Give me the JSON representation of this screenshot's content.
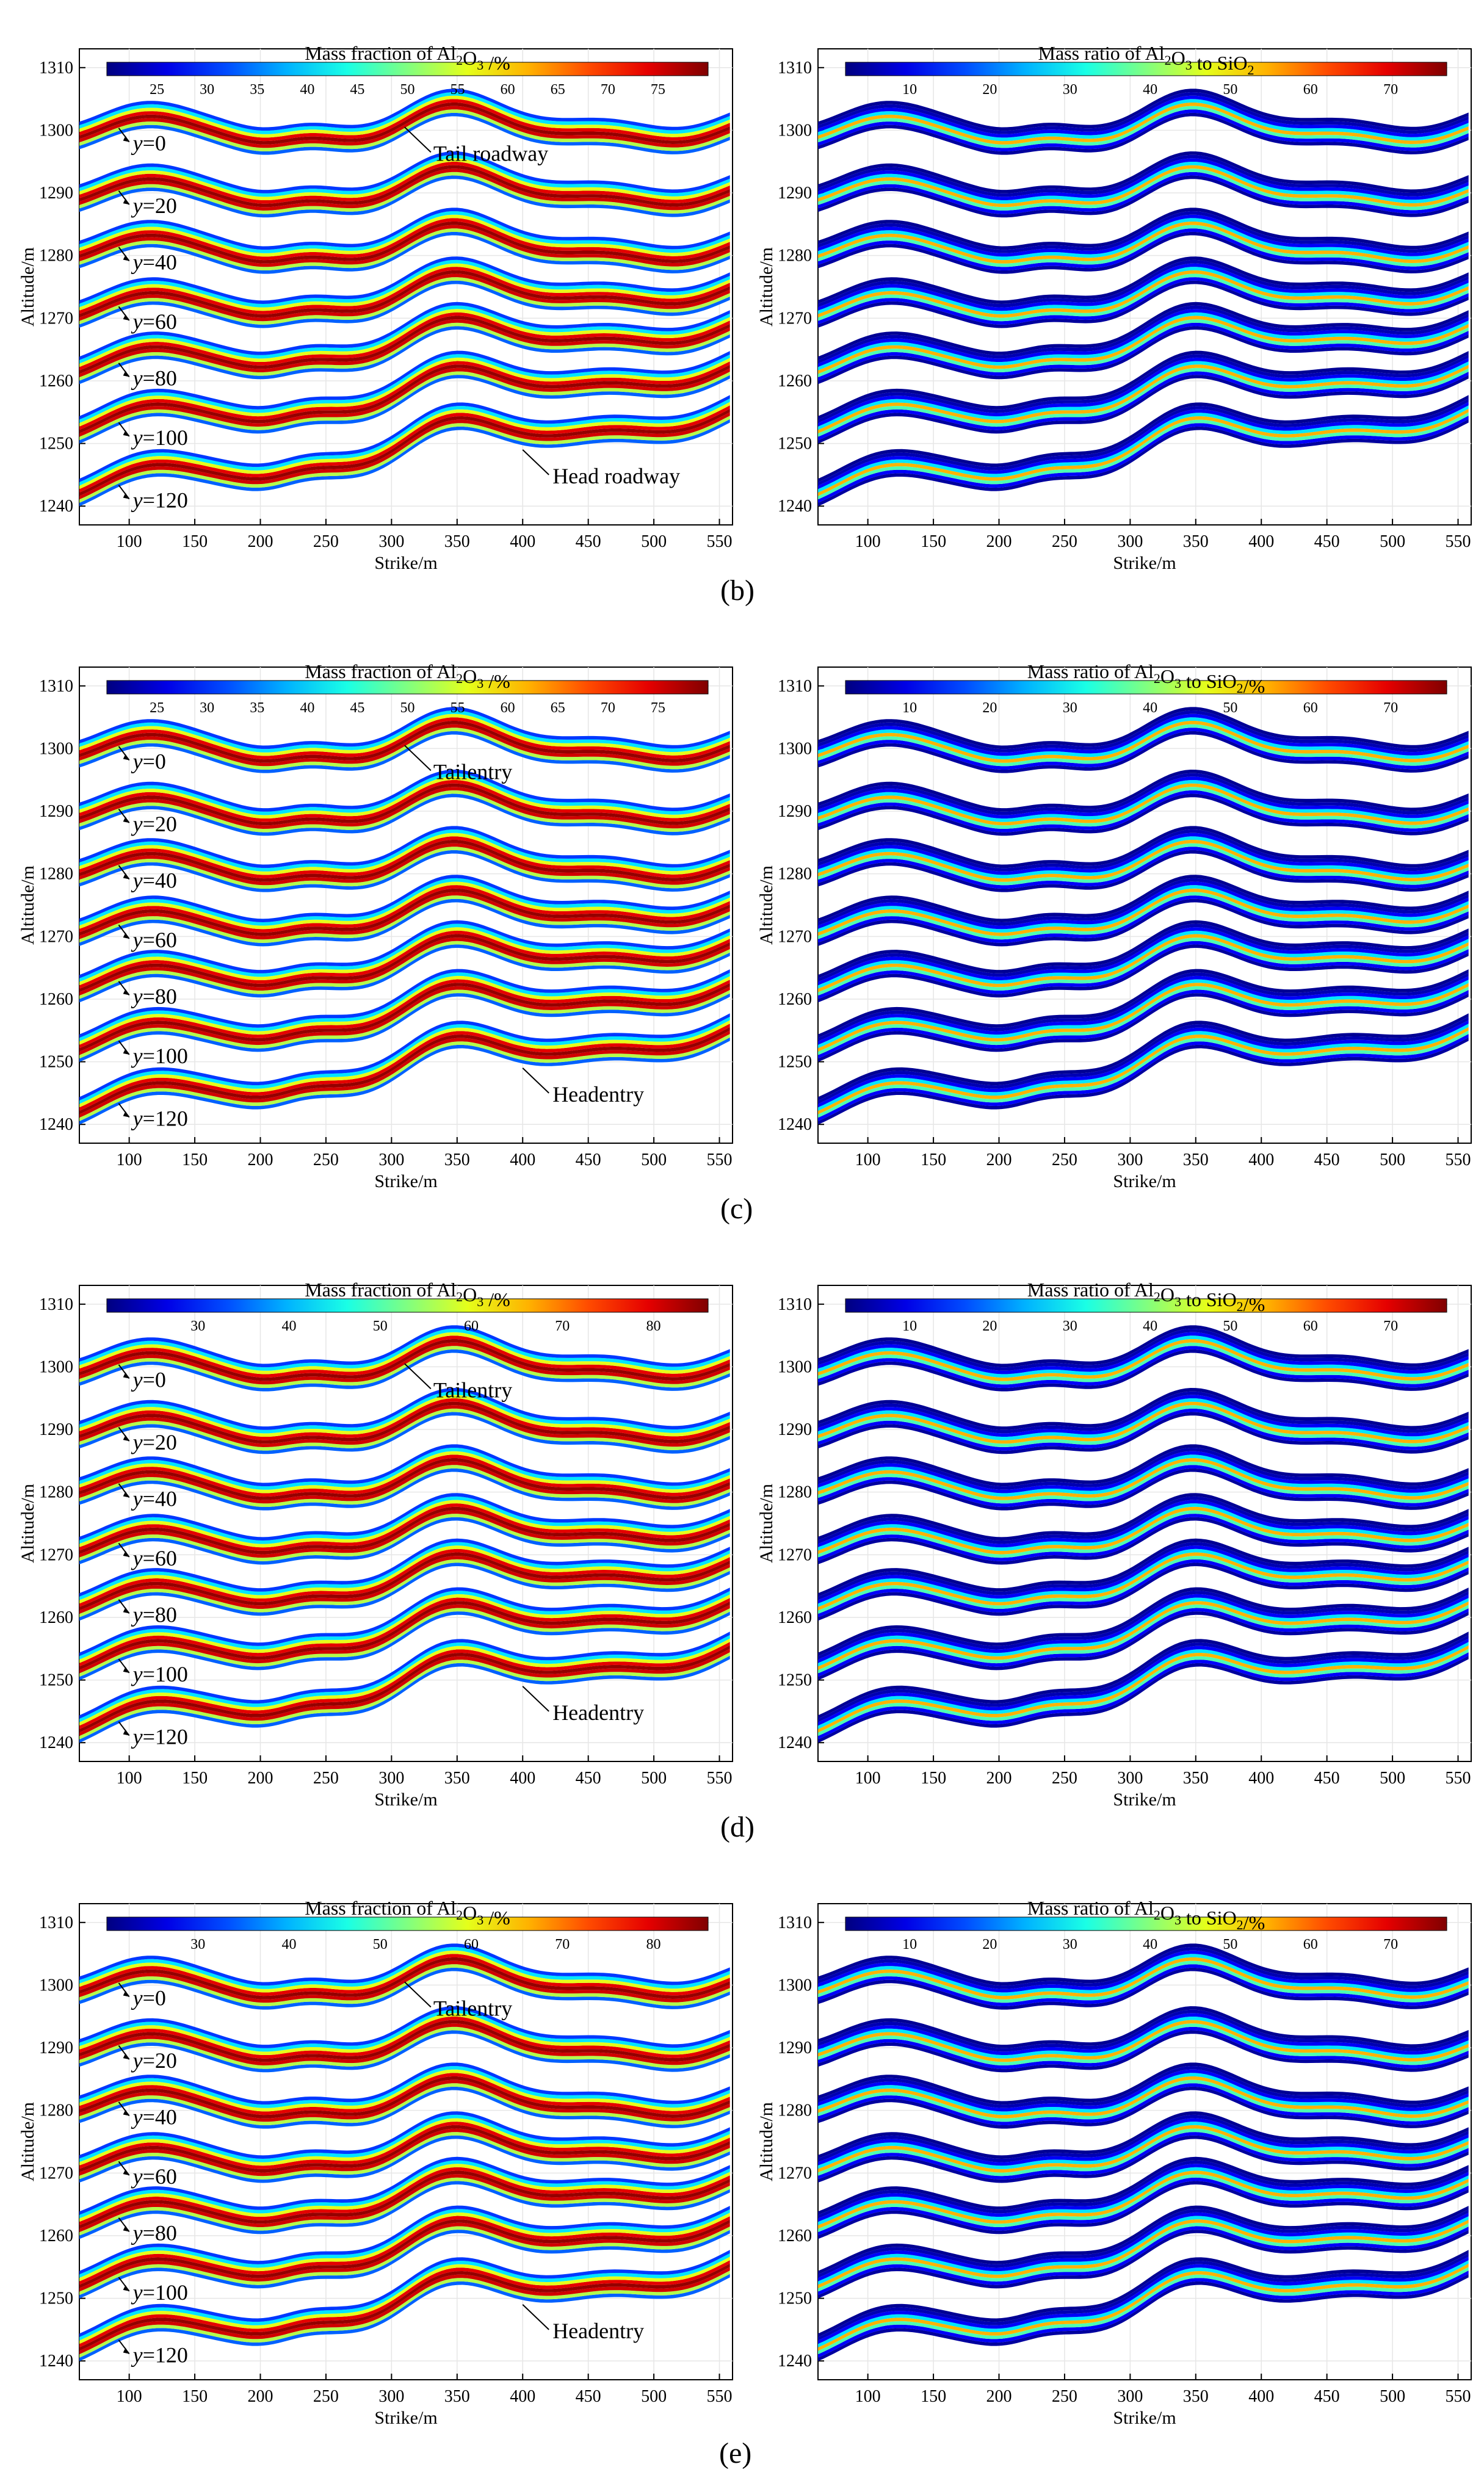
{
  "chart_data": [
    {
      "panel": "b",
      "charts": [
        {
          "type": "contour",
          "side": "left",
          "colorbar_title_main": "Mass fraction of Al",
          "colorbar_title_tail": "O",
          "colorbar_title_end": " /%",
          "colorbar_ticks": [
            25,
            30,
            35,
            40,
            45,
            50,
            55,
            60,
            65,
            70,
            75
          ],
          "colorbar_range": [
            20,
            80
          ],
          "ylabel": "Altitude/m",
          "xlabel": "Strike/m",
          "xticks": [
            100,
            150,
            200,
            250,
            300,
            350,
            400,
            450,
            500,
            550
          ],
          "yticks": [
            1240,
            1250,
            1260,
            1270,
            1280,
            1290,
            1300,
            1310
          ],
          "xlim": [
            62,
            560
          ],
          "ylim": [
            1237,
            1313
          ],
          "y_levels": [
            {
              "label": "y=0",
              "base": 1298
            },
            {
              "label": "y=20",
              "base": 1288
            },
            {
              "label": "y=40",
              "base": 1279
            },
            {
              "label": "y=60",
              "base": 1269.5
            },
            {
              "label": "y=80",
              "base": 1260.5
            },
            {
              "label": "y=100",
              "base": 1251
            },
            {
              "label": "y=120",
              "base": 1241
            }
          ],
          "annotations": [
            "Tail roadway",
            "Head roadway"
          ],
          "mode": "frac"
        },
        {
          "type": "contour",
          "side": "right",
          "colorbar_title_main": "Mass ratio of Al",
          "colorbar_title_tail": "O",
          "colorbar_title_end": " to SiO",
          "colorbar_title_suffix": "",
          "colorbar_ticks": [
            10,
            20,
            30,
            40,
            50,
            60,
            70
          ],
          "colorbar_range": [
            2,
            77
          ],
          "ylabel": "Altitude/m",
          "xlabel": "Strike/m",
          "xticks": [
            100,
            150,
            200,
            250,
            300,
            350,
            400,
            450,
            500,
            550
          ],
          "yticks": [
            1240,
            1250,
            1260,
            1270,
            1280,
            1290,
            1300,
            1310
          ],
          "xlim": [
            62,
            560
          ],
          "ylim": [
            1237,
            1313
          ],
          "mode": "ratio"
        }
      ]
    },
    {
      "panel": "c",
      "charts": [
        {
          "type": "contour",
          "side": "left",
          "colorbar_title_main": "Mass fraction of Al",
          "colorbar_title_tail": "O",
          "colorbar_title_end": " /%",
          "colorbar_ticks": [
            25,
            30,
            35,
            40,
            45,
            50,
            55,
            60,
            65,
            70,
            75
          ],
          "colorbar_range": [
            20,
            80
          ],
          "ylabel": "Altitude/m",
          "xlabel": "Strike/m",
          "xticks": [
            100,
            150,
            200,
            250,
            300,
            350,
            400,
            450,
            500,
            550
          ],
          "yticks": [
            1240,
            1250,
            1260,
            1270,
            1280,
            1290,
            1300,
            1310
          ],
          "xlim": [
            62,
            560
          ],
          "ylim": [
            1237,
            1313
          ],
          "annotations": [
            "Tailentry",
            "Headentry"
          ],
          "mode": "frac"
        },
        {
          "type": "contour",
          "side": "right",
          "colorbar_title_main": "Mass ratio of Al",
          "colorbar_title_tail": "O",
          "colorbar_title_end": " to SiO",
          "colorbar_title_suffix": "/%",
          "colorbar_ticks": [
            10,
            20,
            30,
            40,
            50,
            60,
            70
          ],
          "colorbar_range": [
            2,
            77
          ],
          "ylabel": "Altitude/m",
          "xlabel": "Strike/m",
          "xticks": [
            100,
            150,
            200,
            250,
            300,
            350,
            400,
            450,
            500,
            550
          ],
          "yticks": [
            1240,
            1250,
            1260,
            1270,
            1280,
            1290,
            1300,
            1310
          ],
          "xlim": [
            62,
            560
          ],
          "ylim": [
            1237,
            1313
          ],
          "mode": "ratio"
        }
      ]
    },
    {
      "panel": "d",
      "charts": [
        {
          "type": "contour",
          "side": "left",
          "colorbar_title_main": "Mass fraction of Al",
          "colorbar_title_tail": "O",
          "colorbar_title_end": " /%",
          "colorbar_ticks": [
            30,
            40,
            50,
            60,
            70,
            80
          ],
          "colorbar_range": [
            20,
            86
          ],
          "ylabel": "Altitude/m",
          "xlabel": "Strike/m",
          "xticks": [
            100,
            150,
            200,
            250,
            300,
            350,
            400,
            450,
            500,
            550
          ],
          "yticks": [
            1240,
            1250,
            1260,
            1270,
            1280,
            1290,
            1300,
            1310
          ],
          "xlim": [
            62,
            560
          ],
          "ylim": [
            1237,
            1313
          ],
          "annotations": [
            "Tailentry",
            "Headentry"
          ],
          "mode": "frac"
        },
        {
          "type": "contour",
          "side": "right",
          "colorbar_title_main": "Mass ratio of Al",
          "colorbar_title_tail": "O",
          "colorbar_title_end": " to SiO",
          "colorbar_title_suffix": "/%",
          "colorbar_ticks": [
            10,
            20,
            30,
            40,
            50,
            60,
            70
          ],
          "colorbar_range": [
            2,
            77
          ],
          "ylabel": "Altitude/m",
          "xlabel": "Strike/m",
          "xticks": [
            100,
            150,
            200,
            250,
            300,
            350,
            400,
            450,
            500,
            550
          ],
          "yticks": [
            1240,
            1250,
            1260,
            1270,
            1280,
            1290,
            1300,
            1310
          ],
          "xlim": [
            62,
            560
          ],
          "ylim": [
            1237,
            1313
          ],
          "mode": "ratio"
        }
      ]
    },
    {
      "panel": "e",
      "charts": [
        {
          "type": "contour",
          "side": "left",
          "colorbar_title_main": "Mass fraction of Al",
          "colorbar_title_tail": "O",
          "colorbar_title_end": " /%",
          "colorbar_ticks": [
            30,
            40,
            50,
            60,
            70,
            80
          ],
          "colorbar_range": [
            20,
            86
          ],
          "ylabel": "Altitude/m",
          "xlabel": "Strike/m",
          "xticks": [
            100,
            150,
            200,
            250,
            300,
            350,
            400,
            450,
            500,
            550
          ],
          "yticks": [
            1240,
            1250,
            1260,
            1270,
            1280,
            1290,
            1300,
            1310
          ],
          "xlim": [
            62,
            560
          ],
          "ylim": [
            1237,
            1313
          ],
          "annotations": [
            "Tailentry",
            "Headentry"
          ],
          "mode": "frac"
        },
        {
          "type": "contour",
          "side": "right",
          "colorbar_title_main": "Mass ratio of Al",
          "colorbar_title_tail": "O",
          "colorbar_title_end": " to SiO",
          "colorbar_title_suffix": "/%",
          "colorbar_ticks": [
            10,
            20,
            30,
            40,
            50,
            60,
            70
          ],
          "colorbar_range": [
            2,
            77
          ],
          "ylabel": "Altitude/m",
          "xlabel": "Strike/m",
          "xticks": [
            100,
            150,
            200,
            250,
            300,
            350,
            400,
            450,
            500,
            550
          ],
          "yticks": [
            1240,
            1250,
            1260,
            1270,
            1280,
            1290,
            1300,
            1310
          ],
          "xlim": [
            62,
            560
          ],
          "ylim": [
            1237,
            1313
          ],
          "mode": "ratio"
        }
      ]
    }
  ],
  "panel_labels": [
    "(b)",
    "(c)",
    "(d)",
    "(e)"
  ],
  "subscripts": {
    "al": "2",
    "o": "3",
    "si": "2"
  },
  "y_level_labels": [
    "y=0",
    "y=20",
    "y=40",
    "y=60",
    "y=80",
    "y=100",
    "y=120"
  ],
  "colors": {
    "axis": "#000000",
    "grid": "#e6e6e6"
  }
}
